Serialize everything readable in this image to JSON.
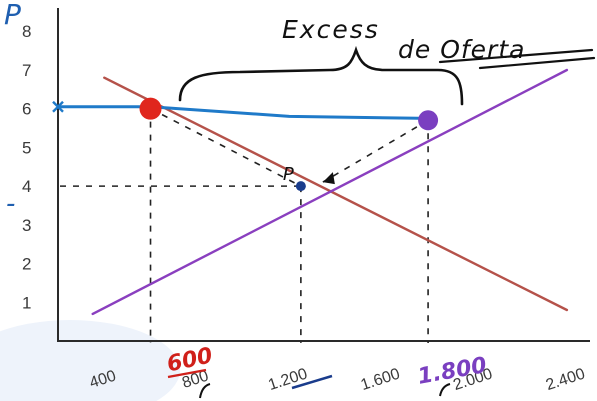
{
  "chart_data": {
    "type": "line",
    "title": "Excess de Oferta",
    "ylabel": "P",
    "xlabel": "",
    "xlim": [
      200,
      2500
    ],
    "ylim": [
      0,
      8.6
    ],
    "y_ticks": [
      "1",
      "2",
      "3",
      "4",
      "5",
      "6",
      "7",
      "8"
    ],
    "x_ticks": [
      {
        "value": 400,
        "label": "400"
      },
      {
        "value": 800,
        "label": "800"
      },
      {
        "value": 1200,
        "label": "1.200"
      },
      {
        "value": 1600,
        "label": "1.600"
      },
      {
        "value": 2000,
        "label": "2.000"
      },
      {
        "value": 2400,
        "label": "2.400"
      }
    ],
    "series": [
      {
        "role": "demand",
        "points": [
          {
            "x": 400,
            "y": 6.8
          },
          {
            "x": 2400,
            "y": 0.8
          }
        ],
        "color": "#b5524a"
      },
      {
        "role": "supply",
        "points": [
          {
            "x": 350,
            "y": 0.7
          },
          {
            "x": 2400,
            "y": 7.0
          }
        ],
        "color": "#8a3fbf"
      },
      {
        "role": "price-line",
        "points": [
          {
            "x": 200,
            "y": 6.05
          },
          {
            "x": 600,
            "y": 6.05
          },
          {
            "x": 1200,
            "y": 5.8
          },
          {
            "x": 1800,
            "y": 5.75
          }
        ],
        "color": "#1f7ac9"
      }
    ],
    "points": [
      {
        "role": "demand-at-price",
        "x": 600,
        "y": 6.0,
        "color": "#e0261d"
      },
      {
        "role": "supply-at-price",
        "x": 1800,
        "y": 5.7,
        "color": "#7a3fc0"
      },
      {
        "role": "equilibrium",
        "x": 1250,
        "y": 4.0,
        "label": "P",
        "color": "#1a3c8c"
      }
    ],
    "annotations": {
      "price_label": "6",
      "demand_qty_label": "600",
      "supply_qty_label": "1.800",
      "equilibrium_label": "P"
    },
    "colors": {
      "axis": "#2a2a2a",
      "tick_text": "#3a3a3a",
      "demand_mark": "#e0261d",
      "supply_mark": "#7a3fc0"
    }
  }
}
